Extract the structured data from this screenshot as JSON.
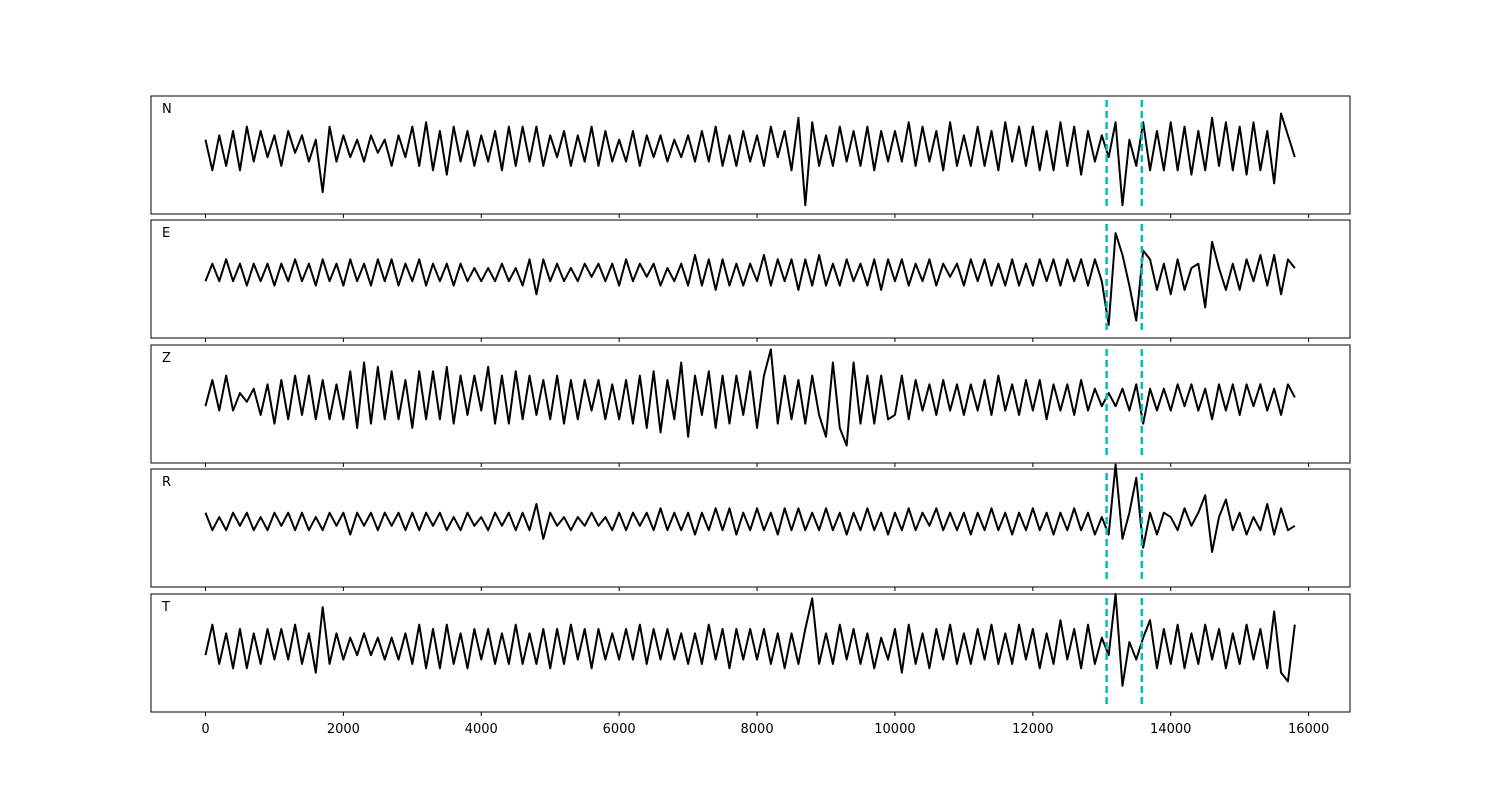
{
  "chart_data": {
    "type": "line",
    "subplots": true,
    "x": [
      0,
      100,
      200,
      300,
      400,
      500,
      600,
      700,
      800,
      900,
      1000,
      1100,
      1200,
      1300,
      1400,
      1500,
      1600,
      1700,
      1800,
      1900,
      2000,
      2100,
      2200,
      2300,
      2400,
      2500,
      2600,
      2700,
      2800,
      2900,
      3000,
      3100,
      3200,
      3300,
      3400,
      3500,
      3600,
      3700,
      3800,
      3900,
      4000,
      4100,
      4200,
      4300,
      4400,
      4500,
      4600,
      4700,
      4800,
      4900,
      5000,
      5100,
      5200,
      5300,
      5400,
      5500,
      5600,
      5700,
      5800,
      5900,
      6000,
      6100,
      6200,
      6300,
      6400,
      6500,
      6600,
      6700,
      6800,
      6900,
      7000,
      7100,
      7200,
      7300,
      7400,
      7500,
      7600,
      7700,
      7800,
      7900,
      8000,
      8100,
      8200,
      8300,
      8400,
      8500,
      8600,
      8700,
      8800,
      8900,
      9000,
      9100,
      9200,
      9300,
      9400,
      9500,
      9600,
      9700,
      9800,
      9900,
      10000,
      10100,
      10200,
      10300,
      10400,
      10500,
      10600,
      10700,
      10800,
      10900,
      11000,
      11100,
      11200,
      11300,
      11400,
      11500,
      11600,
      11700,
      11800,
      11900,
      12000,
      12100,
      12200,
      12300,
      12400,
      12500,
      12600,
      12700,
      12800,
      12900,
      13000,
      13100,
      13200,
      13300,
      13400,
      13500,
      13600,
      13700,
      13800,
      13900,
      14000,
      14100,
      14200,
      14300,
      14400,
      14500,
      14600,
      14700,
      14800,
      14900,
      15000,
      15100,
      15200,
      15300,
      15400,
      15500,
      15600,
      15700,
      15800
    ],
    "series": [
      {
        "name": "N",
        "color": "#000000",
        "values": [
          0.2,
          -0.5,
          0.3,
          -0.4,
          0.4,
          -0.5,
          0.5,
          -0.3,
          0.4,
          -0.2,
          0.3,
          -0.4,
          0.4,
          -0.1,
          0.3,
          -0.3,
          0.2,
          -1.0,
          0.5,
          -0.3,
          0.3,
          -0.2,
          0.2,
          -0.3,
          0.3,
          -0.1,
          0.2,
          -0.4,
          0.3,
          -0.2,
          0.5,
          -0.4,
          0.6,
          -0.5,
          0.4,
          -0.6,
          0.5,
          -0.3,
          0.4,
          -0.4,
          0.3,
          -0.3,
          0.4,
          -0.5,
          0.5,
          -0.4,
          0.5,
          -0.3,
          0.5,
          -0.4,
          0.3,
          -0.2,
          0.4,
          -0.4,
          0.3,
          -0.3,
          0.5,
          -0.4,
          0.4,
          -0.3,
          0.2,
          -0.3,
          0.4,
          -0.4,
          0.3,
          -0.2,
          0.3,
          -0.3,
          0.2,
          -0.2,
          0.3,
          -0.3,
          0.4,
          -0.3,
          0.5,
          -0.4,
          0.3,
          -0.4,
          0.4,
          -0.3,
          0.3,
          -0.4,
          0.5,
          -0.2,
          0.4,
          -0.5,
          0.7,
          -1.3,
          0.6,
          -0.4,
          0.3,
          -0.4,
          0.5,
          -0.3,
          0.4,
          -0.4,
          0.5,
          -0.5,
          0.4,
          -0.3,
          0.4,
          -0.3,
          0.6,
          -0.4,
          0.5,
          -0.3,
          0.4,
          -0.5,
          0.6,
          -0.4,
          0.3,
          -0.4,
          0.5,
          -0.4,
          0.4,
          -0.5,
          0.6,
          -0.3,
          0.5,
          -0.4,
          0.5,
          -0.5,
          0.4,
          -0.5,
          0.6,
          -0.4,
          0.5,
          -0.6,
          0.4,
          -0.3,
          0.3,
          -0.2,
          0.6,
          -1.3,
          0.2,
          -0.4,
          0.6,
          -0.5,
          0.4,
          -0.5,
          0.6,
          -0.5,
          0.5,
          -0.6,
          0.4,
          -0.5,
          0.7,
          -0.4,
          0.6,
          -0.5,
          0.5,
          -0.6,
          0.6,
          -0.5,
          0.4,
          -0.8,
          0.8,
          0.3,
          -0.2
        ]
      },
      {
        "name": "E",
        "color": "#000000",
        "values": [
          -0.2,
          0.2,
          -0.2,
          0.3,
          -0.2,
          0.2,
          -0.3,
          0.2,
          -0.2,
          0.2,
          -0.3,
          0.2,
          -0.2,
          0.3,
          -0.2,
          0.2,
          -0.3,
          0.3,
          -0.2,
          0.2,
          -0.3,
          0.3,
          -0.2,
          0.2,
          -0.3,
          0.3,
          -0.2,
          0.3,
          -0.3,
          0.2,
          -0.2,
          0.3,
          -0.3,
          0.2,
          -0.2,
          0.2,
          -0.3,
          0.2,
          -0.2,
          0.1,
          -0.2,
          0.1,
          -0.2,
          0.2,
          -0.2,
          0.1,
          -0.3,
          0.3,
          -0.5,
          0.3,
          -0.2,
          0.2,
          -0.2,
          0.1,
          -0.2,
          0.2,
          -0.1,
          0.2,
          -0.2,
          0.2,
          -0.3,
          0.3,
          -0.2,
          0.2,
          -0.1,
          0.2,
          -0.3,
          0.1,
          -0.2,
          0.2,
          -0.3,
          0.4,
          -0.3,
          0.3,
          -0.4,
          0.3,
          -0.3,
          0.2,
          -0.3,
          0.2,
          -0.2,
          0.4,
          -0.3,
          0.3,
          -0.2,
          0.3,
          -0.4,
          0.3,
          -0.3,
          0.4,
          -0.3,
          0.2,
          -0.3,
          0.3,
          -0.2,
          0.2,
          -0.3,
          0.3,
          -0.4,
          0.3,
          -0.2,
          0.3,
          -0.3,
          0.2,
          -0.2,
          0.3,
          -0.3,
          0.2,
          -0.1,
          0.2,
          -0.3,
          0.3,
          -0.2,
          0.3,
          -0.3,
          0.2,
          -0.3,
          0.3,
          -0.3,
          0.2,
          -0.3,
          0.3,
          -0.2,
          0.3,
          -0.3,
          0.3,
          -0.2,
          0.3,
          -0.3,
          0.3,
          -0.2,
          -1.2,
          0.9,
          0.4,
          -0.3,
          -1.1,
          0.5,
          0.3,
          -0.4,
          0.2,
          -0.5,
          0.3,
          -0.4,
          0.1,
          0.2,
          -0.8,
          0.7,
          0.1,
          -0.4,
          0.2,
          -0.4,
          0.3,
          -0.2,
          0.4,
          -0.3,
          0.4,
          -0.5,
          0.3,
          0.1
        ]
      },
      {
        "name": "Z",
        "color": "#000000",
        "values": [
          -0.2,
          0.4,
          -0.3,
          0.5,
          -0.3,
          0.1,
          -0.1,
          0.2,
          -0.4,
          0.3,
          -0.6,
          0.4,
          -0.5,
          0.5,
          -0.4,
          0.5,
          -0.5,
          0.4,
          -0.5,
          0.3,
          -0.5,
          0.6,
          -0.7,
          0.8,
          -0.6,
          0.7,
          -0.5,
          0.6,
          -0.5,
          0.4,
          -0.7,
          0.6,
          -0.5,
          0.6,
          -0.5,
          0.7,
          -0.6,
          0.5,
          -0.4,
          0.5,
          -0.3,
          0.7,
          -0.6,
          0.5,
          -0.6,
          0.6,
          -0.5,
          0.5,
          -0.4,
          0.4,
          -0.5,
          0.5,
          -0.6,
          0.4,
          -0.5,
          0.4,
          -0.3,
          0.4,
          -0.5,
          0.3,
          -0.5,
          0.4,
          -0.6,
          0.5,
          -0.7,
          0.6,
          -0.8,
          0.4,
          -0.5,
          0.8,
          -0.9,
          0.5,
          -0.4,
          0.6,
          -0.7,
          0.5,
          -0.6,
          0.5,
          -0.4,
          0.6,
          -0.7,
          0.5,
          1.1,
          -0.6,
          0.5,
          -0.5,
          0.4,
          -0.6,
          0.5,
          -0.4,
          -0.9,
          0.8,
          -0.7,
          -1.1,
          0.8,
          -0.6,
          0.5,
          -0.6,
          0.5,
          -0.5,
          -0.4,
          0.5,
          -0.5,
          0.4,
          -0.3,
          0.3,
          -0.4,
          0.4,
          -0.3,
          0.3,
          -0.4,
          0.3,
          -0.3,
          0.4,
          -0.4,
          0.5,
          -0.3,
          0.3,
          -0.4,
          0.4,
          -0.3,
          0.4,
          -0.5,
          0.3,
          -0.3,
          0.3,
          -0.4,
          0.4,
          -0.3,
          0.2,
          -0.2,
          0.1,
          -0.2,
          0.2,
          -0.3,
          0.3,
          -0.6,
          0.2,
          -0.3,
          0.2,
          -0.3,
          0.3,
          -0.2,
          0.3,
          -0.3,
          0.2,
          -0.5,
          0.3,
          -0.3,
          0.3,
          -0.4,
          0.3,
          -0.2,
          0.3,
          -0.3,
          0.2,
          -0.4,
          0.3,
          0.0
        ]
      },
      {
        "name": "R",
        "color": "#000000",
        "values": [
          0.2,
          -0.2,
          0.1,
          -0.2,
          0.2,
          -0.1,
          0.2,
          -0.2,
          0.1,
          -0.2,
          0.2,
          -0.1,
          0.2,
          -0.2,
          0.2,
          -0.2,
          0.1,
          -0.2,
          0.2,
          -0.1,
          0.2,
          -0.3,
          0.2,
          -0.1,
          0.2,
          -0.2,
          0.2,
          -0.1,
          0.2,
          -0.2,
          0.2,
          -0.2,
          0.2,
          -0.1,
          0.2,
          -0.2,
          0.1,
          -0.2,
          0.2,
          -0.1,
          0.1,
          -0.2,
          0.2,
          -0.1,
          0.2,
          -0.2,
          0.2,
          -0.2,
          0.4,
          -0.4,
          0.2,
          -0.1,
          0.1,
          -0.2,
          0.1,
          -0.1,
          0.2,
          -0.1,
          0.1,
          -0.2,
          0.2,
          -0.2,
          0.2,
          -0.1,
          0.2,
          -0.2,
          0.3,
          -0.2,
          0.2,
          -0.2,
          0.2,
          -0.3,
          0.2,
          -0.2,
          0.3,
          -0.2,
          0.3,
          -0.3,
          0.2,
          -0.2,
          0.3,
          -0.2,
          0.2,
          -0.3,
          0.3,
          -0.2,
          0.3,
          -0.2,
          0.2,
          -0.2,
          0.3,
          -0.2,
          0.2,
          -0.3,
          0.2,
          -0.2,
          0.3,
          -0.2,
          0.2,
          -0.3,
          0.2,
          -0.2,
          0.3,
          -0.2,
          0.2,
          -0.1,
          0.3,
          -0.2,
          0.2,
          -0.2,
          0.2,
          -0.3,
          0.2,
          -0.2,
          0.3,
          -0.2,
          0.2,
          -0.3,
          0.2,
          -0.2,
          0.3,
          -0.2,
          0.2,
          -0.3,
          0.2,
          -0.2,
          0.3,
          -0.2,
          0.2,
          -0.3,
          0.1,
          -0.3,
          1.3,
          -0.4,
          0.2,
          1.0,
          -0.6,
          0.2,
          -0.3,
          0.2,
          0.1,
          -0.2,
          0.3,
          -0.1,
          0.2,
          0.6,
          -0.7,
          0.1,
          0.5,
          -0.2,
          0.2,
          -0.3,
          0.1,
          -0.2,
          0.4,
          -0.3,
          0.3,
          -0.2,
          -0.1
        ]
      },
      {
        "name": "T",
        "color": "#000000",
        "values": [
          -0.2,
          0.5,
          -0.4,
          0.3,
          -0.5,
          0.4,
          -0.5,
          0.3,
          -0.4,
          0.4,
          -0.3,
          0.4,
          -0.3,
          0.5,
          -0.4,
          0.3,
          -0.6,
          0.9,
          -0.4,
          0.3,
          -0.3,
          0.2,
          -0.2,
          0.3,
          -0.2,
          0.2,
          -0.3,
          0.2,
          -0.3,
          0.3,
          -0.4,
          0.5,
          -0.5,
          0.4,
          -0.5,
          0.5,
          -0.4,
          0.3,
          -0.5,
          0.4,
          -0.3,
          0.4,
          -0.4,
          0.3,
          -0.4,
          0.5,
          -0.4,
          0.3,
          -0.4,
          0.4,
          -0.5,
          0.4,
          -0.4,
          0.5,
          -0.3,
          0.4,
          -0.5,
          0.4,
          -0.3,
          0.3,
          -0.3,
          0.4,
          -0.3,
          0.5,
          -0.4,
          0.4,
          -0.3,
          0.4,
          -0.3,
          0.3,
          -0.4,
          0.3,
          -0.4,
          0.5,
          -0.3,
          0.4,
          -0.5,
          0.4,
          -0.3,
          0.4,
          -0.3,
          0.4,
          -0.4,
          0.3,
          -0.5,
          0.3,
          -0.4,
          0.4,
          1.1,
          -0.4,
          0.3,
          -0.4,
          0.5,
          -0.3,
          0.4,
          -0.4,
          0.3,
          -0.5,
          0.2,
          -0.3,
          0.4,
          -0.6,
          0.5,
          -0.4,
          0.3,
          -0.5,
          0.4,
          -0.3,
          0.5,
          -0.4,
          0.3,
          -0.4,
          0.4,
          -0.3,
          0.5,
          -0.4,
          0.3,
          -0.4,
          0.5,
          -0.3,
          0.4,
          -0.5,
          0.3,
          -0.4,
          0.6,
          -0.3,
          0.4,
          -0.5,
          0.5,
          -0.4,
          0.2,
          -0.2,
          1.2,
          -0.9,
          0.1,
          -0.3,
          0.2,
          0.6,
          -0.5,
          0.4,
          -0.4,
          0.5,
          -0.5,
          0.3,
          -0.4,
          0.5,
          -0.3,
          0.4,
          -0.5,
          0.3,
          -0.4,
          0.5,
          -0.3,
          0.4,
          -0.5,
          0.8,
          -0.6,
          -0.8,
          0.5
        ]
      }
    ],
    "xlim": [
      -790,
      16600
    ],
    "xticks": [
      0,
      2000,
      4000,
      6000,
      8000,
      10000,
      12000,
      14000,
      16000
    ],
    "ylim": [
      -1.5,
      1.2
    ],
    "vlines": {
      "x": [
        13070,
        13580
      ],
      "color": "#00bfbf",
      "style": "dashed"
    }
  }
}
